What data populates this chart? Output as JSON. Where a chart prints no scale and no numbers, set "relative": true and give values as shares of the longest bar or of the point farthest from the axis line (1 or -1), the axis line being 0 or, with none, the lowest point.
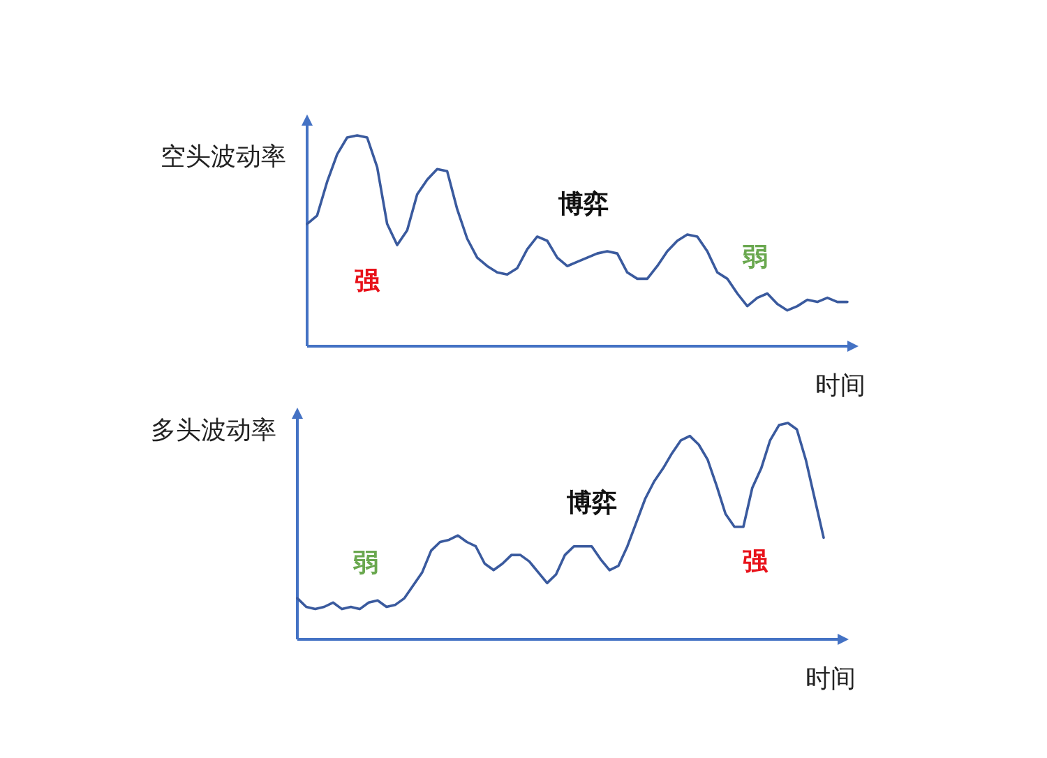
{
  "chart_data": [
    {
      "type": "line",
      "relative": true,
      "ylabel": "空头波动率",
      "xlabel": "时间",
      "annotations": [
        "强",
        "博弈",
        "弱"
      ],
      "categories": [
        null,
        null,
        null,
        null,
        null,
        null,
        null,
        null,
        null,
        null,
        null,
        null,
        null,
        null,
        null,
        null,
        null,
        null,
        null,
        null,
        null,
        null,
        null,
        null,
        null,
        null,
        null,
        null,
        null,
        null,
        null,
        null,
        null,
        null,
        null,
        null,
        null,
        null,
        null,
        null,
        null,
        null,
        null,
        null,
        null,
        null,
        null,
        null,
        null,
        null,
        null,
        null,
        null,
        null,
        null
      ],
      "series": [
        {
          "color": "#3a5a9e",
          "values": [
            0.58,
            0.62,
            0.78,
            0.91,
            0.99,
            1,
            0.99,
            0.85,
            0.58,
            0.48,
            0.55,
            0.72,
            0.79,
            0.84,
            0.83,
            0.65,
            0.51,
            0.42,
            0.38,
            0.35,
            0.34,
            0.37,
            0.46,
            0.52,
            0.5,
            0.42,
            0.38,
            0.4,
            0.42,
            0.44,
            0.45,
            0.44,
            0.35,
            0.32,
            0.32,
            0.38,
            0.45,
            0.5,
            0.53,
            0.52,
            0.45,
            0.35,
            0.32,
            0.25,
            0.19,
            0.23,
            0.25,
            0.2,
            0.17,
            0.19,
            0.22,
            0.21,
            0.23,
            0.21,
            0.21
          ]
        }
      ]
    },
    {
      "type": "line",
      "relative": true,
      "ylabel": "多头波动率",
      "xlabel": "时间",
      "annotations": [
        "弱",
        "博弈",
        "强"
      ],
      "categories": [
        null,
        null,
        null,
        null,
        null,
        null,
        null,
        null,
        null,
        null,
        null,
        null,
        null,
        null,
        null,
        null,
        null,
        null,
        null,
        null,
        null,
        null,
        null,
        null,
        null,
        null,
        null,
        null,
        null,
        null,
        null,
        null,
        null,
        null,
        null,
        null,
        null,
        null,
        null,
        null,
        null,
        null,
        null,
        null,
        null,
        null,
        null,
        null,
        null,
        null,
        null,
        null,
        null,
        null,
        null,
        null,
        null,
        null,
        null,
        null
      ],
      "series": [
        {
          "color": "#3a5a9e",
          "values": [
            0.19,
            0.15,
            0.14,
            0.15,
            0.17,
            0.14,
            0.15,
            0.14,
            0.17,
            0.18,
            0.15,
            0.16,
            0.19,
            0.25,
            0.31,
            0.41,
            0.45,
            0.46,
            0.48,
            0.45,
            0.43,
            0.35,
            0.32,
            0.35,
            0.39,
            0.39,
            0.36,
            0.31,
            0.26,
            0.3,
            0.39,
            0.43,
            0.43,
            0.43,
            0.37,
            0.32,
            0.34,
            0.43,
            0.54,
            0.65,
            0.73,
            0.79,
            0.86,
            0.92,
            0.94,
            0.9,
            0.83,
            0.71,
            0.58,
            0.52,
            0.52,
            0.7,
            0.79,
            0.92,
            0.99,
            1,
            0.97,
            0.83,
            0.65,
            0.47
          ]
        }
      ]
    }
  ]
}
